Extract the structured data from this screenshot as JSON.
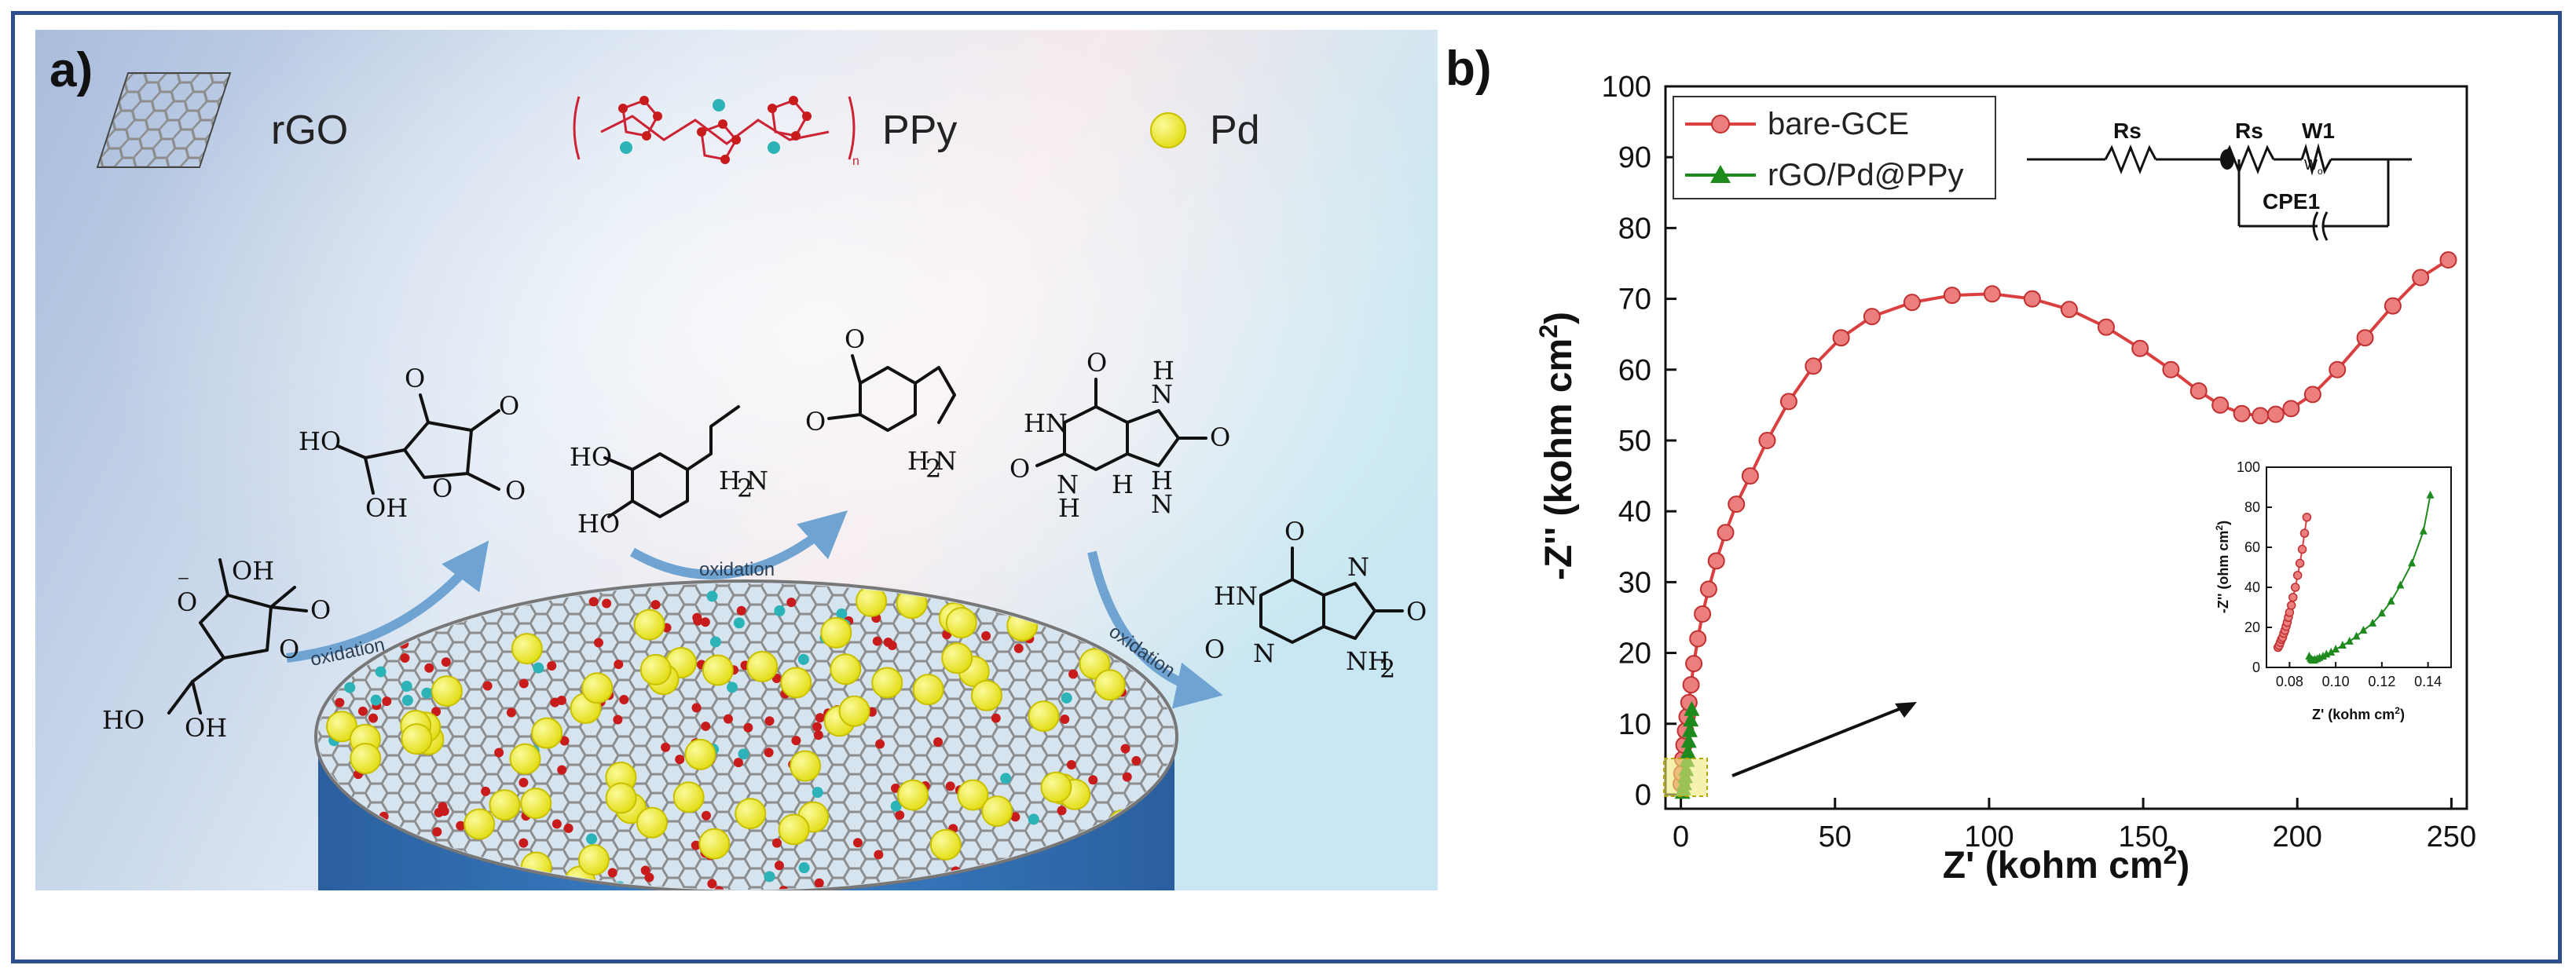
{
  "panel_a": {
    "label": "a)",
    "legend": {
      "rgo": "rGO",
      "ppy": "PPy",
      "pd": "Pd",
      "ppy_subscript": "n"
    },
    "oxidation_label": "oxidation",
    "colors": {
      "background_left": "#a8bedc",
      "background_right": "#cfe9f2",
      "electrode": "#2c6cb0",
      "pd": "#f1ef23",
      "carbon": "#c81b1b",
      "nitrogen": "#2bb3b8",
      "lattice": "#8f8f8f",
      "arrow": "#6ea3d2"
    },
    "molecules": {
      "ascorbate": [
        "OH",
        "O",
        "⁻",
        "O",
        "O",
        "HO",
        "OH"
      ],
      "dehydroascorbic": [
        "O",
        "O",
        "O",
        "O",
        "HO",
        "OH"
      ],
      "dopamine": [
        "HO",
        "HO",
        "H",
        "2",
        "N"
      ],
      "dopamine_quinone": [
        "O",
        "O",
        "H",
        "2",
        "N"
      ],
      "uric_acid": [
        "O",
        "HN",
        "O",
        "N",
        "H",
        "N",
        "H",
        "H",
        "N",
        "O",
        "H"
      ],
      "uric_acid_oxidized": [
        "HN",
        "O",
        "O",
        "N",
        "N",
        "NH",
        "2",
        "O"
      ]
    }
  },
  "panel_b": {
    "label": "b)",
    "xlabel": "Z' (kohm cm",
    "xlabel_sup": "2",
    "xlabel_end": ")",
    "ylabel": "-Z'' (kohm cm",
    "ylabel_sup": "2",
    "ylabel_end": ")",
    "legend": [
      {
        "name": "bare-GCE",
        "color": "#d9403f",
        "marker": "circle"
      },
      {
        "name": "rGO/Pd@PPy",
        "color": "#1e8a1e",
        "marker": "triangle"
      }
    ],
    "circuit": {
      "elements": [
        "Rs",
        "Rs",
        "W1",
        "CPE1"
      ],
      "w_symbol": "W",
      "w_sub": "o"
    },
    "inset": {
      "xlabel": "Z' (kohm cm",
      "xlabel_sup": "2",
      "xlabel_end": ")",
      "ylabel": "-Z'' (ohm cm",
      "ylabel_sup": "2",
      "ylabel_end": ")"
    }
  },
  "chart_data": [
    {
      "type": "scatter",
      "xlabel": "Z' (kohm cm2)",
      "ylabel": "-Z'' (kohm cm2)",
      "xlim": [
        -5,
        255
      ],
      "ylim": [
        -2,
        100
      ],
      "xticks": [
        0,
        50,
        100,
        150,
        200,
        250
      ],
      "yticks": [
        0,
        10,
        20,
        30,
        40,
        50,
        60,
        70,
        80,
        90,
        100
      ],
      "series": [
        {
          "name": "bare-GCE",
          "color": "#d9403f",
          "x": [
            0.1,
            0.3,
            0.6,
            1.0,
            1.5,
            2.0,
            2.6,
            3.3,
            4.2,
            5.5,
            7.0,
            9.0,
            11.5,
            14.5,
            18.0,
            22.5,
            28.0,
            35.0,
            43.0,
            52.0,
            62.0,
            75.0,
            88.0,
            101.0,
            114.0,
            126.0,
            138.0,
            149.0,
            159.0,
            168.0,
            175.0,
            182.0,
            188.0,
            193.0,
            198.0,
            205.0,
            213.0,
            222.0,
            231.0,
            240.0,
            249.0
          ],
          "y": [
            1.5,
            3.0,
            5.0,
            7.0,
            9.0,
            11.0,
            13.0,
            15.5,
            18.5,
            22.0,
            25.5,
            29.0,
            33.0,
            37.0,
            41.0,
            45.0,
            50.0,
            55.5,
            60.5,
            64.5,
            67.5,
            69.5,
            70.5,
            70.7,
            70.0,
            68.5,
            66.0,
            63.0,
            60.0,
            57.0,
            55.0,
            53.8,
            53.5,
            53.7,
            54.5,
            56.5,
            60.0,
            64.5,
            69.0,
            73.0,
            75.5
          ]
        },
        {
          "name": "rGO/Pd@PPy",
          "color": "#1e8a1e",
          "x": [
            0.5,
            0.8,
            1.1,
            1.4,
            1.7,
            2.0,
            2.3,
            2.6,
            2.9,
            3.2,
            3.5
          ],
          "y": [
            0.3,
            0.8,
            1.5,
            2.5,
            3.5,
            4.8,
            6.0,
            7.5,
            9.0,
            10.5,
            12.0
          ]
        }
      ]
    },
    {
      "type": "scatter",
      "xlabel": "Z' (kohm cm2)",
      "ylabel": "-Z'' (ohm cm2)",
      "xlim": [
        0.07,
        0.15
      ],
      "ylim": [
        0,
        100
      ],
      "xticks": [
        0.08,
        0.1,
        0.12,
        0.14
      ],
      "yticks": [
        0,
        20,
        40,
        60,
        80,
        100
      ],
      "series": [
        {
          "name": "bare-GCE",
          "color": "#d9403f",
          "x": [
            0.075,
            0.0755,
            0.076,
            0.0765,
            0.077,
            0.0775,
            0.078,
            0.0785,
            0.079,
            0.0795,
            0.08,
            0.0808,
            0.0815,
            0.0825,
            0.0835,
            0.0845,
            0.0855,
            0.0865,
            0.0875
          ],
          "y": [
            10,
            11,
            12.5,
            14,
            15,
            17,
            18.5,
            20.5,
            22.5,
            25,
            27.5,
            31,
            35,
            40,
            46,
            52,
            59,
            67,
            75
          ]
        },
        {
          "name": "rGO/Pd@PPy",
          "color": "#1e8a1e",
          "x": [
            0.0885,
            0.089,
            0.0895,
            0.09,
            0.0905,
            0.091,
            0.092,
            0.093,
            0.0945,
            0.096,
            0.098,
            0.1,
            0.103,
            0.106,
            0.109,
            0.112,
            0.116,
            0.12,
            0.124,
            0.128,
            0.133,
            0.138,
            0.141
          ],
          "y": [
            5.5,
            4.5,
            3.8,
            3.5,
            3.5,
            3.8,
            4.2,
            4.8,
            5.5,
            6.5,
            7.5,
            9,
            11,
            13,
            15.5,
            18.5,
            22,
            27,
            33,
            41,
            52,
            68,
            86
          ]
        }
      ]
    }
  ]
}
